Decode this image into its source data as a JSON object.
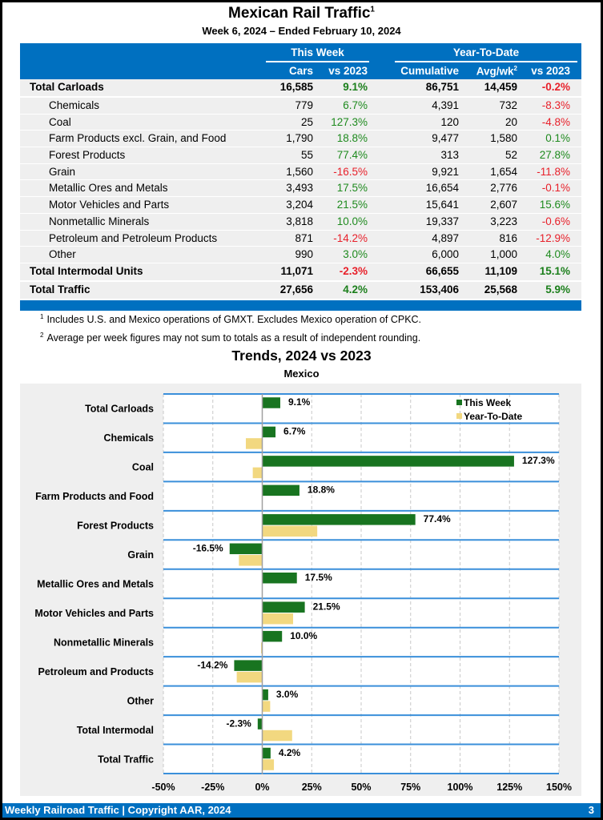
{
  "header": {
    "title": "Mexican Rail Traffic",
    "title_sup": "1",
    "subtitle": "Week 6, 2024 – Ended February 10, 2024"
  },
  "table": {
    "group_this_week": "This Week",
    "group_ytd": "Year-To-Date",
    "columns": {
      "cars": "Cars",
      "tw_vs": "vs 2023",
      "cumulative": "Cumulative",
      "avg": "Avg/wk",
      "avg_sup": "2",
      "ytd_vs": "vs 2023"
    },
    "rows": [
      {
        "label": "Total Carloads",
        "bold": true,
        "cars": "16,585",
        "tw_vs": "9.1%",
        "cum": "86,751",
        "avg": "14,459",
        "ytd_vs": "-0.2%"
      },
      {
        "label": "Chemicals",
        "bold": false,
        "cars": "779",
        "tw_vs": "6.7%",
        "cum": "4,391",
        "avg": "732",
        "ytd_vs": "-8.3%"
      },
      {
        "label": "Coal",
        "bold": false,
        "cars": "25",
        "tw_vs": "127.3%",
        "cum": "120",
        "avg": "20",
        "ytd_vs": "-4.8%"
      },
      {
        "label": "Farm Products excl. Grain, and Food",
        "bold": false,
        "cars": "1,790",
        "tw_vs": "18.8%",
        "cum": "9,477",
        "avg": "1,580",
        "ytd_vs": "0.1%"
      },
      {
        "label": "Forest Products",
        "bold": false,
        "cars": "55",
        "tw_vs": "77.4%",
        "cum": "313",
        "avg": "52",
        "ytd_vs": "27.8%"
      },
      {
        "label": "Grain",
        "bold": false,
        "cars": "1,560",
        "tw_vs": "-16.5%",
        "cum": "9,921",
        "avg": "1,654",
        "ytd_vs": "-11.8%"
      },
      {
        "label": "Metallic Ores and Metals",
        "bold": false,
        "cars": "3,493",
        "tw_vs": "17.5%",
        "cum": "16,654",
        "avg": "2,776",
        "ytd_vs": "-0.1%"
      },
      {
        "label": "Motor Vehicles and Parts",
        "bold": false,
        "cars": "3,204",
        "tw_vs": "21.5%",
        "cum": "15,641",
        "avg": "2,607",
        "ytd_vs": "15.6%"
      },
      {
        "label": "Nonmetallic Minerals",
        "bold": false,
        "cars": "3,818",
        "tw_vs": "10.0%",
        "cum": "19,337",
        "avg": "3,223",
        "ytd_vs": "-0.6%"
      },
      {
        "label": "Petroleum and Petroleum Products",
        "bold": false,
        "cars": "871",
        "tw_vs": "-14.2%",
        "cum": "4,897",
        "avg": "816",
        "ytd_vs": "-12.9%"
      },
      {
        "label": "Other",
        "bold": false,
        "cars": "990",
        "tw_vs": "3.0%",
        "cum": "6,000",
        "avg": "1,000",
        "ytd_vs": "4.0%"
      },
      {
        "label": "Total Intermodal Units",
        "bold": true,
        "cars": "11,071",
        "tw_vs": "-2.3%",
        "cum": "66,655",
        "avg": "11,109",
        "ytd_vs": "15.1%"
      },
      {
        "label": "Total Traffic",
        "bold": true,
        "cars": "27,656",
        "tw_vs": "4.2%",
        "cum": "153,406",
        "avg": "25,568",
        "ytd_vs": "5.9%"
      }
    ]
  },
  "notes": [
    {
      "sup": "1",
      "text": "Includes U.S. and Mexico operations of GMXT. Excludes Mexico operation of CPKC."
    },
    {
      "sup": "2",
      "text": "Average per week figures may not sum to totals as a result of independent rounding."
    }
  ],
  "colors": {
    "brand_blue": "#0070C0",
    "this_week": "#187420",
    "ytd": "#F2D880",
    "positive": "#1E8A1E",
    "negative": "#E8202A"
  },
  "chart_data": {
    "type": "bar",
    "orientation": "horizontal",
    "title": "Trends, 2024 vs 2023",
    "subtitle": "Mexico",
    "categories": [
      "Total Carloads",
      "Chemicals",
      "Coal",
      "Farm Products and Food",
      "Forest Products",
      "Grain",
      "Metallic Ores and Metals",
      "Motor Vehicles and Parts",
      "Nonmetallic Minerals",
      "Petroleum and Products",
      "Other",
      "Total Intermodal",
      "Total Traffic"
    ],
    "series": [
      {
        "name": "This Week",
        "values": [
          9.1,
          6.7,
          127.3,
          18.8,
          77.4,
          -16.5,
          17.5,
          21.5,
          10.0,
          -14.2,
          3.0,
          -2.3,
          4.2
        ],
        "labeled": true
      },
      {
        "name": "Year-To-Date",
        "values": [
          -0.2,
          -8.3,
          -4.8,
          0.1,
          27.8,
          -11.8,
          -0.1,
          15.6,
          -0.6,
          -12.9,
          4.0,
          15.1,
          5.9
        ],
        "labeled": false
      }
    ],
    "data_labels": [
      "9.1%",
      "6.7%",
      "127.3%",
      "18.8%",
      "77.4%",
      "-16.5%",
      "17.5%",
      "21.5%",
      "10.0%",
      "-14.2%",
      "3.0%",
      "-2.3%",
      "4.2%"
    ],
    "xlim": [
      -50,
      150
    ],
    "xticks": [
      -50,
      -25,
      0,
      25,
      50,
      75,
      100,
      125,
      150
    ],
    "xtick_labels": [
      "-50%",
      "-25%",
      "0%",
      "25%",
      "50%",
      "75%",
      "100%",
      "125%",
      "150%"
    ],
    "xlabel": "",
    "ylabel": "",
    "grid": "vertical dashed",
    "legend": "top-right"
  },
  "footer": {
    "left": "Weekly Railroad Traffic | Copyright AAR, 2024",
    "page": "3"
  }
}
